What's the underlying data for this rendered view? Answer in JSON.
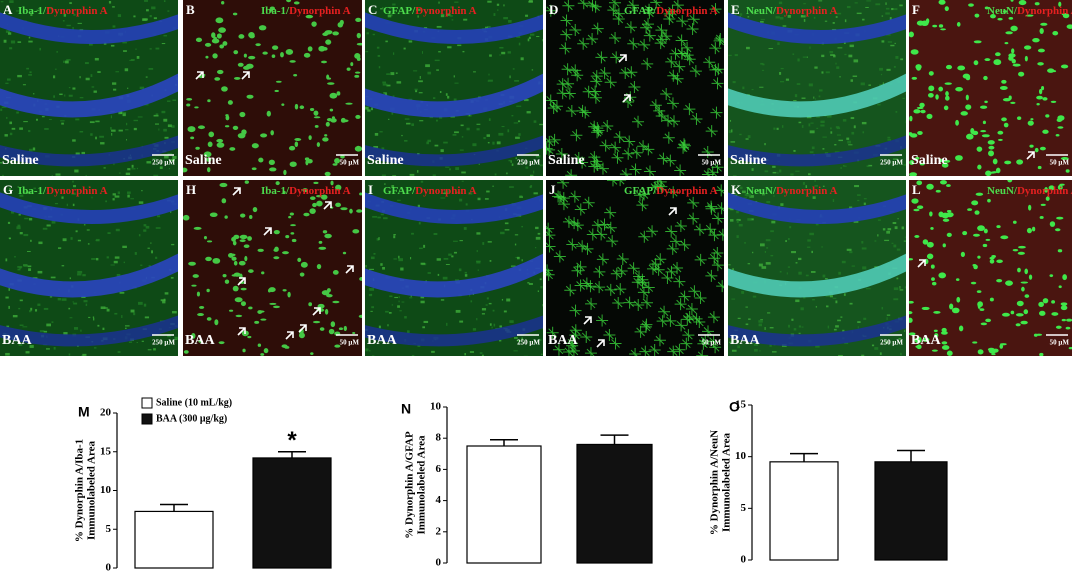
{
  "panels": [
    {
      "letter": "A",
      "marker": "Iba-1/",
      "target": "Dynorphin A",
      "group": "Saline",
      "scale": "250 μM"
    },
    {
      "letter": "B",
      "marker": "Iba-1/",
      "target": "Dynorphin A",
      "group": "Saline",
      "scale": "50 μM"
    },
    {
      "letter": "C",
      "marker": "GFAP/",
      "target": "Dynorphin A",
      "group": "Saline",
      "scale": "250 μM"
    },
    {
      "letter": "D",
      "marker": "GFAP/",
      "target": "Dynorphin A",
      "group": "Saline",
      "scale": "50 μM"
    },
    {
      "letter": "E",
      "marker": "NeuN/",
      "target": "Dynorphin A",
      "group": "Saline",
      "scale": "250 μM"
    },
    {
      "letter": "F",
      "marker": "NeuN/",
      "target": "Dynorphin A",
      "group": "Saline",
      "scale": "50 μM"
    },
    {
      "letter": "G",
      "marker": "Iba-1/",
      "target": "Dynorphin A",
      "group": "BAA",
      "scale": "250 μM"
    },
    {
      "letter": "H",
      "marker": "Iba-1/",
      "target": "Dynorphin A",
      "group": "BAA",
      "scale": "50 μM"
    },
    {
      "letter": "I",
      "marker": "GFAP/",
      "target": "Dynorphin A",
      "group": "BAA",
      "scale": "250 μM"
    },
    {
      "letter": "J",
      "marker": "GFAP/",
      "target": "Dynorphin A",
      "group": "BAA",
      "scale": "50 μM"
    },
    {
      "letter": "K",
      "marker": "NeuN/",
      "target": "Dynorphin A",
      "group": "BAA",
      "scale": "250 μM"
    },
    {
      "letter": "L",
      "marker": "NeuN/",
      "target": "Dynorphin A",
      "group": "BAA",
      "scale": "50 μM"
    }
  ],
  "chart_data": [
    {
      "type": "bar",
      "panel": "M",
      "ylabel": [
        "% Dynorphin A/Iba-1",
        "Immunolabeled Area"
      ],
      "ylim": [
        0,
        20
      ],
      "yticks": [
        0,
        5,
        10,
        15,
        20
      ],
      "legend": true,
      "annotation": "*",
      "series": [
        {
          "name": "Saline (10 mL/kg)",
          "color": "#ffffff",
          "values": [
            7.3
          ],
          "errors": [
            0.9
          ]
        },
        {
          "name": "BAA (300 μg/kg)",
          "color": "#111111",
          "values": [
            14.2
          ],
          "errors": [
            0.8
          ]
        }
      ]
    },
    {
      "type": "bar",
      "panel": "N",
      "ylabel": [
        "% Dynorphin A/GFAP",
        "Immunolabeled Area"
      ],
      "ylim": [
        0,
        10
      ],
      "yticks": [
        0,
        2,
        4,
        6,
        8,
        10
      ],
      "legend": false,
      "series": [
        {
          "color": "#ffffff",
          "values": [
            7.5
          ],
          "errors": [
            0.4
          ]
        },
        {
          "color": "#111111",
          "values": [
            7.6
          ],
          "errors": [
            0.6
          ]
        }
      ]
    },
    {
      "type": "bar",
      "panel": "O",
      "ylabel": [
        "% Dynorphin A/NeuN",
        "Immunolabeled Area"
      ],
      "ylim": [
        0,
        15
      ],
      "yticks": [
        0,
        5,
        10,
        15
      ],
      "legend": false,
      "series": [
        {
          "color": "#ffffff",
          "values": [
            9.5
          ],
          "errors": [
            0.8
          ]
        },
        {
          "color": "#111111",
          "values": [
            9.5
          ],
          "errors": [
            1.1
          ]
        }
      ]
    }
  ]
}
